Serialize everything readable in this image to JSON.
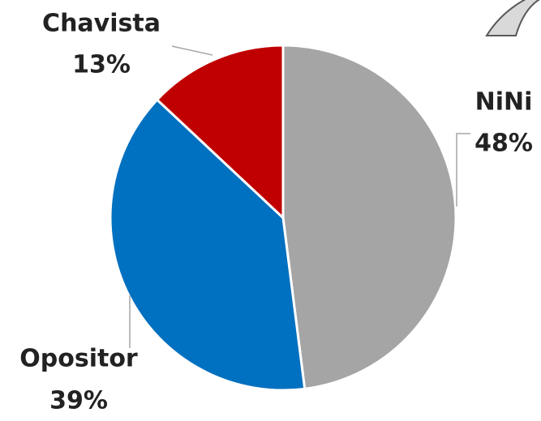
{
  "chart_data": {
    "type": "pie",
    "categories": [
      "NiNi",
      "Opositor",
      "Chavista"
    ],
    "values": [
      48,
      39,
      13
    ],
    "value_labels": [
      "48%",
      "39%",
      "13%"
    ],
    "colors": [
      "#a5a5a5",
      "#0070c0",
      "#c00000"
    ]
  }
}
